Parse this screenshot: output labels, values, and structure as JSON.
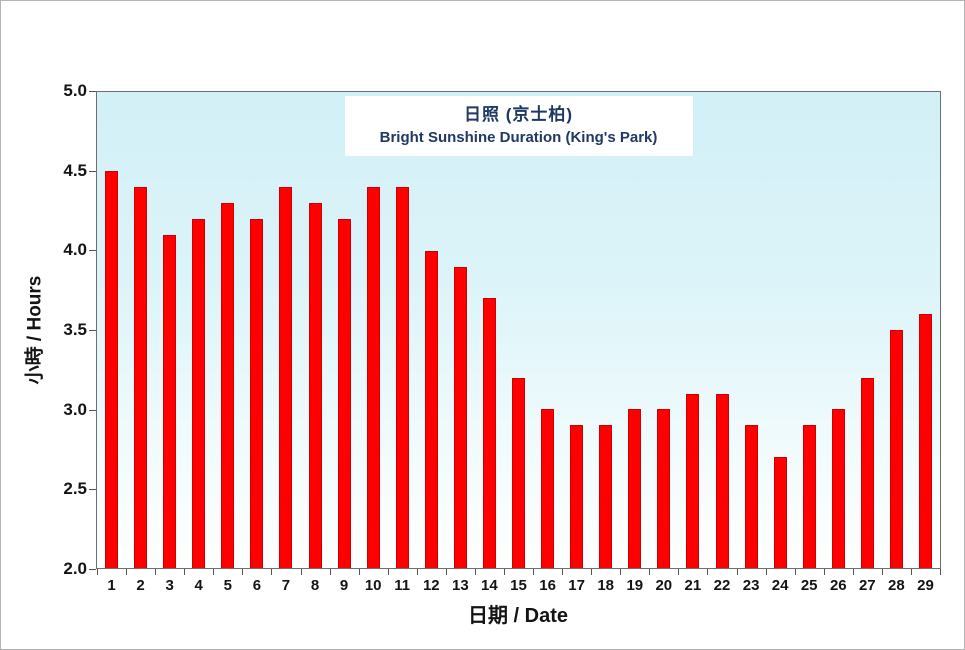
{
  "chart_data": {
    "type": "bar",
    "title": "日照 (京士柏)",
    "subtitle": "Bright Sunshine Duration (King's Park)",
    "xlabel": "日期 / Date",
    "ylabel": "小時 / Hours",
    "ylim": [
      2.0,
      5.0
    ],
    "yticks": [
      "5.0",
      "4.5",
      "4.0",
      "3.5",
      "3.0",
      "2.5",
      "2.0"
    ],
    "ytick_values": [
      5.0,
      4.5,
      4.0,
      3.5,
      3.0,
      2.5,
      2.0
    ],
    "categories": [
      "1",
      "2",
      "3",
      "4",
      "5",
      "6",
      "7",
      "8",
      "9",
      "10",
      "11",
      "12",
      "13",
      "14",
      "15",
      "16",
      "17",
      "18",
      "19",
      "20",
      "21",
      "22",
      "23",
      "24",
      "25",
      "26",
      "27",
      "28",
      "29"
    ],
    "values": [
      4.5,
      4.4,
      4.1,
      4.2,
      4.3,
      4.2,
      4.4,
      4.3,
      4.2,
      4.4,
      4.4,
      4.0,
      3.9,
      3.7,
      3.2,
      3.0,
      2.9,
      2.9,
      3.0,
      3.0,
      3.1,
      3.1,
      2.9,
      2.7,
      2.9,
      3.0,
      3.2,
      3.5,
      3.6
    ],
    "bar_color": "#ff0000",
    "bar_edge_color": "#cc0000",
    "plot_bg_top": "#d2f0f7",
    "plot_bg_bottom": "#ffffff",
    "grid": false,
    "legend": "none"
  }
}
